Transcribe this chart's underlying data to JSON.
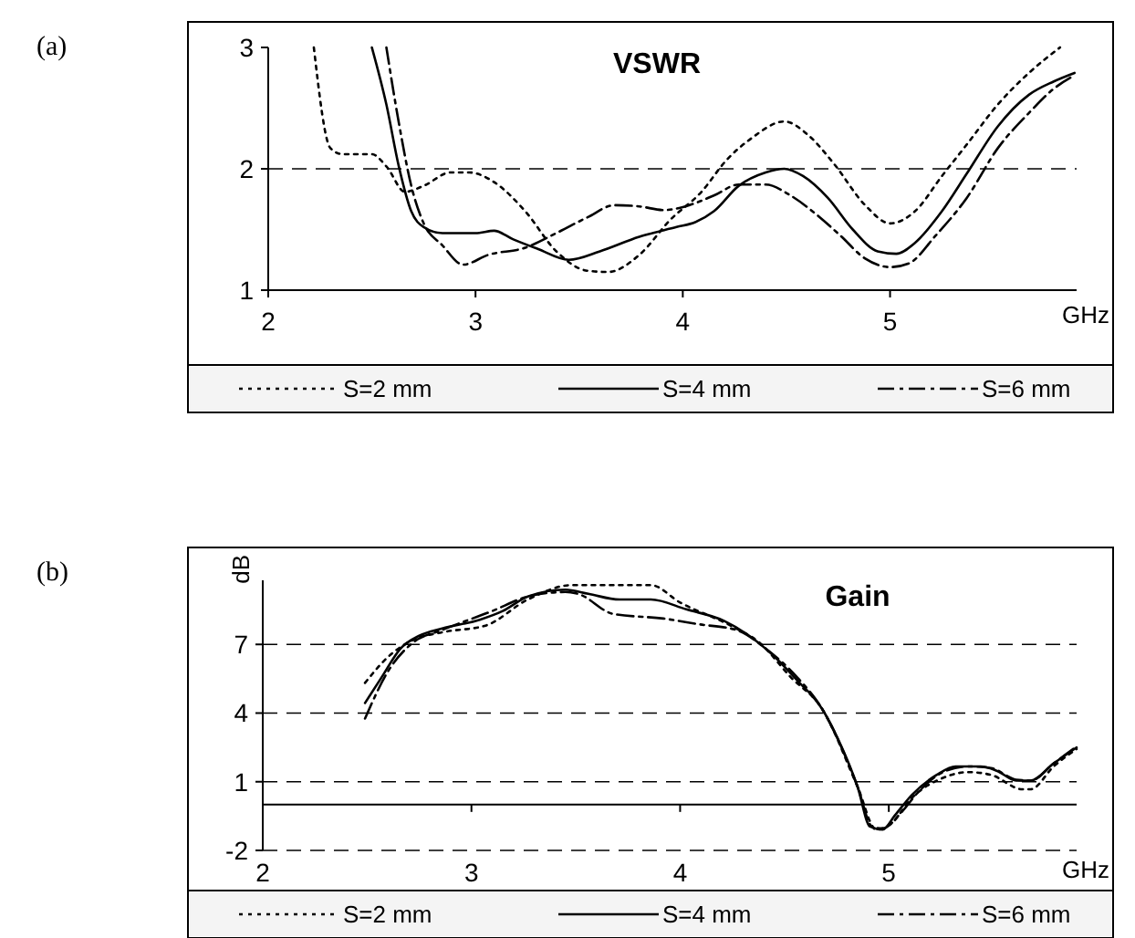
{
  "chart_data": [
    {
      "type": "line",
      "title": "VSWR",
      "xlabel": "GHz",
      "annotations": [
        "(a)"
      ],
      "xlim": [
        2,
        5.9
      ],
      "xticks": [
        2,
        3,
        4,
        5
      ],
      "ylim": [
        1,
        3
      ],
      "yticks": [
        1,
        2,
        3
      ],
      "grid": false,
      "legend": "bottom",
      "ref_lines": [
        {
          "axis": "y",
          "value": 2,
          "line_style": "dashed",
          "color": "#000000"
        }
      ],
      "series": [
        {
          "name": "S=2 mm",
          "color": "#000000",
          "line_style": "dotted",
          "x": [
            2.22,
            2.3,
            2.36,
            2.5,
            2.57,
            2.66,
            2.75,
            2.88,
            2.97,
            3.09,
            3.24,
            3.39,
            3.54,
            3.64,
            3.79,
            3.94,
            4.09,
            4.21,
            4.33,
            4.49,
            4.61,
            4.73,
            4.88,
            5.0,
            5.12,
            5.25,
            5.37,
            5.52,
            5.67,
            5.82
          ],
          "values": [
            3.0,
            2.17,
            2.12,
            2.12,
            2.02,
            1.81,
            1.86,
            1.97,
            1.97,
            1.89,
            1.65,
            1.32,
            1.16,
            1.15,
            1.29,
            1.58,
            1.81,
            2.07,
            2.25,
            2.39,
            2.27,
            2.04,
            1.7,
            1.55,
            1.65,
            1.94,
            2.2,
            2.53,
            2.79,
            3.0
          ]
        },
        {
          "name": "S=4 mm",
          "color": "#000000",
          "line_style": "solid",
          "x": [
            2.5,
            2.57,
            2.63,
            2.69,
            2.75,
            2.84,
            3.0,
            3.09,
            3.18,
            3.3,
            3.45,
            3.6,
            3.79,
            3.97,
            4.06,
            4.15,
            4.27,
            4.4,
            4.49,
            4.58,
            4.7,
            4.82,
            4.94,
            5.03,
            5.12,
            5.25,
            5.37,
            5.52,
            5.67,
            5.79,
            5.89
          ],
          "values": [
            3.0,
            2.53,
            2.02,
            1.65,
            1.52,
            1.47,
            1.47,
            1.49,
            1.42,
            1.34,
            1.25,
            1.32,
            1.44,
            1.52,
            1.56,
            1.65,
            1.86,
            1.97,
            2.0,
            1.94,
            1.76,
            1.5,
            1.32,
            1.3,
            1.39,
            1.65,
            1.96,
            2.35,
            2.61,
            2.72,
            2.79
          ]
        },
        {
          "name": "S=6 mm",
          "color": "#000000",
          "line_style": "dashed",
          "x": [
            2.57,
            2.63,
            2.69,
            2.75,
            2.84,
            2.94,
            3.06,
            3.24,
            3.39,
            3.54,
            3.67,
            3.79,
            3.91,
            4.03,
            4.15,
            4.27,
            4.4,
            4.52,
            4.64,
            4.76,
            4.88,
            5.0,
            5.09,
            5.22,
            5.37,
            5.52,
            5.67,
            5.79,
            5.89
          ],
          "values": [
            3.0,
            2.38,
            1.86,
            1.55,
            1.37,
            1.21,
            1.29,
            1.35,
            1.47,
            1.6,
            1.7,
            1.69,
            1.66,
            1.7,
            1.78,
            1.87,
            1.87,
            1.78,
            1.63,
            1.45,
            1.26,
            1.19,
            1.22,
            1.45,
            1.76,
            2.17,
            2.46,
            2.66,
            2.77
          ]
        }
      ]
    },
    {
      "type": "line",
      "title": "Gain",
      "xlabel": "GHz",
      "ylabel": "dB",
      "annotations": [
        "(b)"
      ],
      "xlim": [
        2,
        5.9
      ],
      "xticks": [
        2,
        3,
        4,
        5
      ],
      "ylim": [
        -2,
        9.8
      ],
      "yticks": [
        -2,
        1,
        4,
        7
      ],
      "grid": "y",
      "legend": "bottom",
      "series": [
        {
          "name": "S=2 mm",
          "color": "#000000",
          "line_style": "dotted",
          "x": [
            2.49,
            2.6,
            2.72,
            2.86,
            3.07,
            3.27,
            3.48,
            3.68,
            3.86,
            4.0,
            4.24,
            4.38,
            4.53,
            4.68,
            4.85,
            4.94,
            5.01,
            5.11,
            5.26,
            5.38,
            5.49,
            5.64,
            5.68,
            5.79,
            5.9
          ],
          "values": [
            5.32,
            6.45,
            7.2,
            7.53,
            7.83,
            8.96,
            9.59,
            9.59,
            9.59,
            8.83,
            7.83,
            7.08,
            5.57,
            4.19,
            0.79,
            -1.09,
            -0.84,
            0.29,
            1.17,
            1.42,
            1.3,
            0.67,
            0.67,
            1.67,
            2.43
          ]
        },
        {
          "name": "S=4 mm",
          "color": "#000000",
          "line_style": "solid",
          "x": [
            2.49,
            2.57,
            2.66,
            2.75,
            2.86,
            3.04,
            3.15,
            3.27,
            3.45,
            3.56,
            3.71,
            3.86,
            4.03,
            4.21,
            4.32,
            4.44,
            4.56,
            4.68,
            4.76,
            4.85,
            4.91,
            4.97,
            5.03,
            5.11,
            5.23,
            5.32,
            5.44,
            5.52,
            5.61,
            5.68,
            5.79,
            5.9
          ],
          "values": [
            4.44,
            5.57,
            6.82,
            7.38,
            7.7,
            8.08,
            8.46,
            9.09,
            9.39,
            9.21,
            8.96,
            8.96,
            8.53,
            8.03,
            7.45,
            6.57,
            5.44,
            4.19,
            2.8,
            0.79,
            -0.96,
            -1.09,
            -0.46,
            0.42,
            1.3,
            1.67,
            1.67,
            1.47,
            1.05,
            1.05,
            1.8,
            2.5
          ]
        },
        {
          "name": "S=6 mm",
          "color": "#000000",
          "line_style": "dashed",
          "x": [
            2.49,
            2.6,
            2.72,
            2.86,
            3.1,
            3.27,
            3.45,
            3.51,
            3.68,
            3.92,
            4.09,
            4.27,
            4.41,
            4.56,
            4.68,
            4.85,
            4.92,
            4.97,
            5.06,
            5.14,
            5.26,
            5.38,
            5.49,
            5.61,
            5.68,
            5.79,
            5.9
          ],
          "values": [
            3.76,
            5.82,
            7.08,
            7.63,
            8.46,
            9.09,
            9.29,
            9.21,
            8.33,
            8.13,
            7.88,
            7.63,
            6.82,
            5.57,
            4.19,
            0.79,
            -0.96,
            -1.04,
            -0.34,
            0.54,
            1.42,
            1.67,
            1.6,
            1.09,
            1.05,
            1.8,
            2.55
          ]
        }
      ]
    }
  ]
}
